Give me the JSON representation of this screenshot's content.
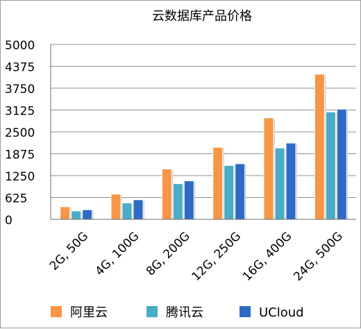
{
  "chart_data": {
    "type": "bar",
    "title": "云数据库产品价格",
    "xlabel": "",
    "ylabel": "",
    "categories": [
      "2G, 50G",
      "4G, 100G",
      "8G, 200G",
      "12G, 250G",
      "16G, 400G",
      "24G, 500G"
    ],
    "ylim": [
      0,
      5000
    ],
    "yticks": [
      "0",
      "625",
      "1250",
      "1875",
      "2500",
      "3125",
      "3750",
      "4375",
      "5000"
    ],
    "grid": true,
    "legend_position": "bottom",
    "series": [
      {
        "name": "阿里云",
        "color": "#f79646",
        "values": [
          360,
          720,
          1440,
          2060,
          2900,
          4150
        ]
      },
      {
        "name": "腾讯云",
        "color": "#4bacc6",
        "values": [
          240,
          470,
          1020,
          1540,
          2040,
          3070
        ]
      },
      {
        "name": "UCloud",
        "color": "#2e6bc4",
        "values": [
          275,
          560,
          1100,
          1590,
          2180,
          3150
        ]
      }
    ]
  }
}
